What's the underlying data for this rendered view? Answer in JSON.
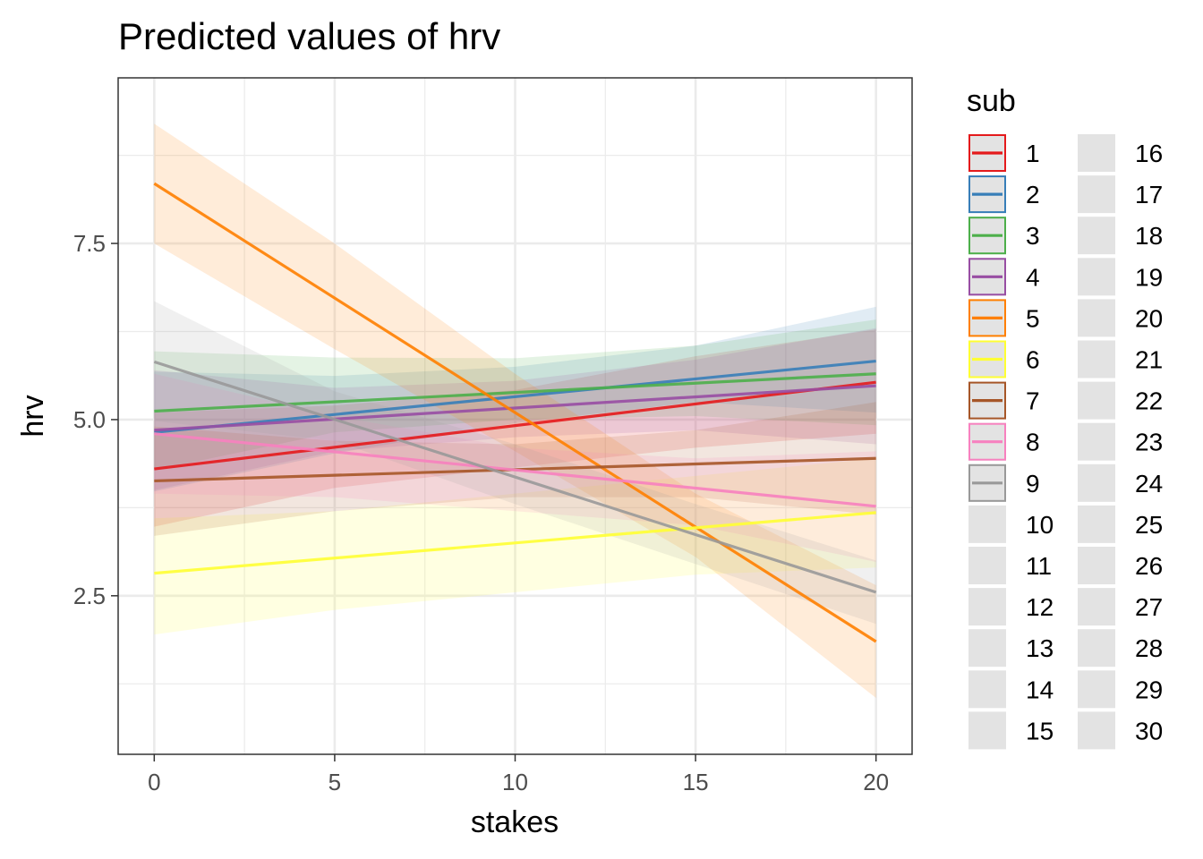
{
  "chart_data": {
    "type": "line",
    "title": "Predicted values of hrv",
    "xlabel": "stakes",
    "ylabel": "hrv",
    "xlim": [
      -1,
      21
    ],
    "ylim": [
      0.25,
      9.85
    ],
    "x_ticks": [
      0,
      5,
      10,
      15,
      20
    ],
    "x_tick_labels": [
      "0",
      "5",
      "10",
      "15",
      "20"
    ],
    "y_ticks": [
      2.5,
      5.0,
      7.5
    ],
    "y_tick_labels": [
      "2.5",
      "5.0",
      "7.5"
    ],
    "grid": true,
    "legend": {
      "title": "sub",
      "position": "right",
      "labels": [
        "1",
        "2",
        "3",
        "4",
        "5",
        "6",
        "7",
        "8",
        "9",
        "10",
        "11",
        "12",
        "13",
        "14",
        "15",
        "16",
        "17",
        "18",
        "19",
        "20",
        "21",
        "22",
        "23",
        "24",
        "25",
        "26",
        "27",
        "28",
        "29",
        "30"
      ]
    },
    "series": [
      {
        "name": "1",
        "color": "#E41A1C",
        "x": [
          0,
          20
        ],
        "y": [
          4.3,
          5.53
        ],
        "ci_x": [
          0,
          5,
          10,
          15,
          20
        ],
        "ci_low": [
          3.48,
          4.03,
          4.32,
          4.6,
          4.8
        ],
        "ci_high": [
          5.1,
          5.2,
          5.42,
          5.9,
          6.28
        ]
      },
      {
        "name": "2",
        "color": "#377EB8",
        "x": [
          0,
          20
        ],
        "y": [
          4.82,
          5.83
        ],
        "ci_x": [
          0,
          5,
          10,
          15,
          20
        ],
        "ci_low": [
          3.98,
          4.52,
          4.95,
          5.25,
          5.1
        ],
        "ci_high": [
          5.68,
          5.62,
          5.75,
          6.05,
          6.6
        ]
      },
      {
        "name": "3",
        "color": "#4DAF4A",
        "x": [
          0,
          20
        ],
        "y": [
          5.12,
          5.65
        ],
        "ci_x": [
          0,
          5,
          10,
          15,
          20
        ],
        "ci_low": [
          4.28,
          4.82,
          5.0,
          5.05,
          4.92
        ],
        "ci_high": [
          5.97,
          5.88,
          5.87,
          6.05,
          6.42
        ]
      },
      {
        "name": "4",
        "color": "#984EA3",
        "x": [
          0,
          20
        ],
        "y": [
          4.85,
          5.48
        ],
        "ci_x": [
          0,
          5,
          10,
          15,
          20
        ],
        "ci_low": [
          4.0,
          4.55,
          4.75,
          4.85,
          4.65
        ],
        "ci_high": [
          5.7,
          5.45,
          5.55,
          5.85,
          6.3
        ]
      },
      {
        "name": "5",
        "color": "#FF7F00",
        "x": [
          0,
          20
        ],
        "y": [
          8.35,
          1.85
        ],
        "ci_x": [
          0,
          5,
          10,
          15,
          20
        ],
        "ci_low": [
          7.5,
          6.0,
          4.55,
          3.05,
          1.05
        ],
        "ci_high": [
          9.2,
          7.5,
          5.65,
          3.95,
          2.65
        ]
      },
      {
        "name": "6",
        "color": "#FFFF33",
        "x": [
          0,
          20
        ],
        "y": [
          2.82,
          3.68
        ],
        "ci_x": [
          0,
          5,
          10,
          15,
          20
        ],
        "ci_low": [
          1.95,
          2.3,
          2.55,
          2.8,
          2.9
        ],
        "ci_high": [
          3.6,
          3.7,
          3.95,
          4.2,
          4.45
        ]
      },
      {
        "name": "7",
        "color": "#A65628",
        "x": [
          0,
          20
        ],
        "y": [
          4.13,
          4.45
        ],
        "ci_x": [
          0,
          5,
          10,
          15,
          20
        ],
        "ci_low": [
          3.35,
          3.7,
          3.9,
          3.9,
          3.65
        ],
        "ci_high": [
          4.9,
          4.7,
          4.65,
          4.85,
          5.25
        ]
      },
      {
        "name": "8",
        "color": "#F781BF",
        "x": [
          0,
          20
        ],
        "y": [
          4.8,
          3.77
        ],
        "ci_x": [
          0,
          5,
          10,
          15,
          20
        ],
        "ci_low": [
          3.95,
          3.9,
          3.7,
          3.5,
          2.98
        ],
        "ci_high": [
          5.65,
          5.05,
          4.6,
          4.45,
          4.55
        ]
      },
      {
        "name": "9",
        "color": "#999999",
        "x": [
          0,
          20
        ],
        "y": [
          5.82,
          2.55
        ],
        "ci_x": [
          0,
          5,
          10,
          15,
          20
        ],
        "ci_low": [
          4.98,
          4.7,
          3.8,
          2.95,
          2.1
        ],
        "ci_high": [
          6.68,
          5.4,
          4.65,
          3.8,
          3.0
        ]
      }
    ]
  }
}
